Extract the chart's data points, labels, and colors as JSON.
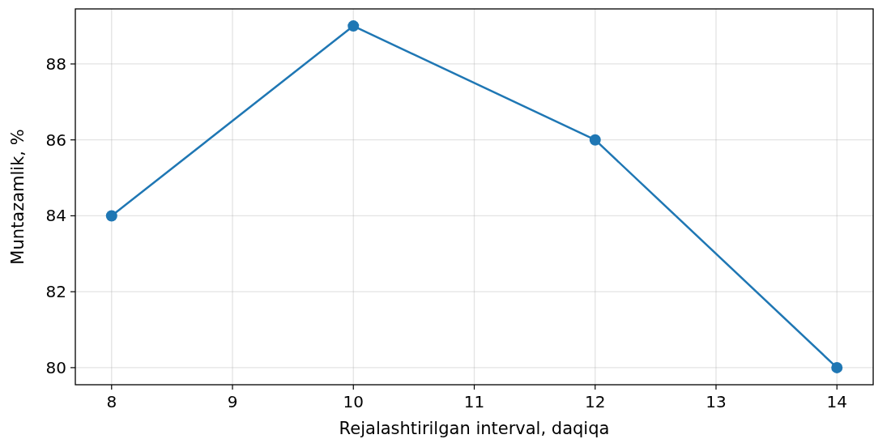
{
  "chart_data": {
    "type": "line",
    "xlabel": "Rejalashtirilgan interval, daqiqa",
    "ylabel": "Muntazamlik, %",
    "x": [
      8,
      10,
      12,
      14
    ],
    "series": [
      {
        "color": "#1f77b4",
        "values": [
          84,
          89,
          86,
          80
        ]
      }
    ],
    "xlim": [
      7.7,
      14.3
    ],
    "xticks": [
      8,
      9,
      10,
      11,
      12,
      13,
      14
    ],
    "ylim": [
      79.55,
      89.45
    ],
    "yticks": [
      80,
      82,
      84,
      86,
      88
    ],
    "grid": true,
    "marker": "circle",
    "line_style": "solid"
  }
}
